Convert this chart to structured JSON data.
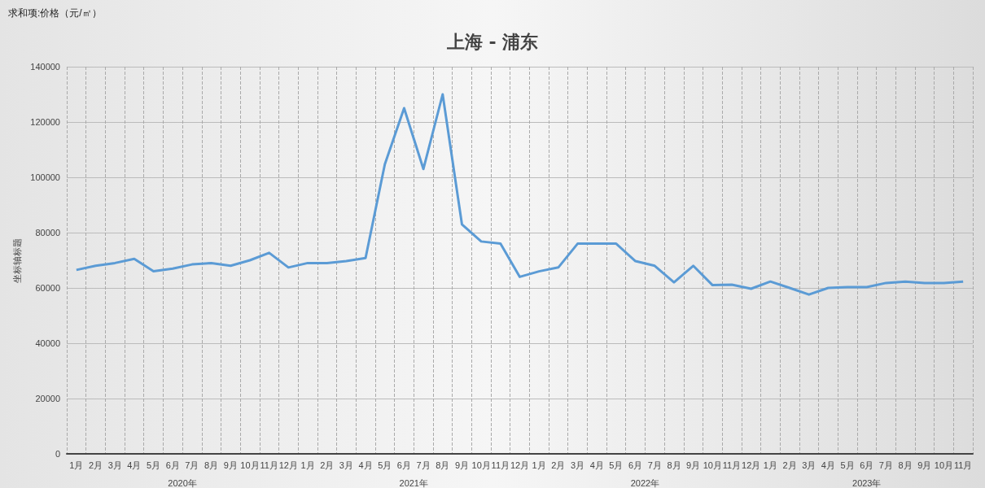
{
  "chart_data": {
    "type": "line",
    "title": "上海 - 浦东",
    "ylabel": "坐标轴标题",
    "annotations": [
      "求和项:价格（元/㎡）",
      "2020年",
      "2021年",
      "2022年",
      "2023年"
    ],
    "categories": [
      "1月",
      "2月",
      "3月",
      "4月",
      "5月",
      "6月",
      "7月",
      "8月",
      "9月",
      "10月",
      "11月",
      "12月",
      "1月",
      "2月",
      "3月",
      "4月",
      "5月",
      "6月",
      "7月",
      "8月",
      "9月",
      "10月",
      "11月",
      "12月",
      "1月",
      "2月",
      "3月",
      "4月",
      "5月",
      "6月",
      "7月",
      "8月",
      "9月",
      "10月",
      "11月",
      "12月",
      "1月",
      "2月",
      "3月",
      "4月",
      "5月",
      "6月",
      "7月",
      "8月",
      "9月",
      "10月",
      "11月"
    ],
    "series": [
      {
        "color": "#5b9bd5",
        "values": [
          66500,
          68000,
          69000,
          70500,
          66000,
          67000,
          68500,
          69000,
          68000,
          70000,
          72700,
          67400,
          69000,
          69000,
          69700,
          70800,
          104700,
          125000,
          103000,
          130000,
          83000,
          76800,
          76000,
          64000,
          66000,
          67400,
          76000,
          76000,
          76000,
          69700,
          68000,
          62000,
          68000,
          61000,
          61200,
          59700,
          62300,
          60000,
          57600,
          60000,
          60300,
          60300,
          61800,
          62300,
          61800,
          61800,
          62300
        ]
      }
    ],
    "ylim": [
      0,
      140000
    ],
    "yticks": [
      0,
      20000,
      40000,
      60000,
      80000,
      100000,
      120000,
      140000
    ],
    "grid": true,
    "marker": "none",
    "line_style": "solid"
  }
}
